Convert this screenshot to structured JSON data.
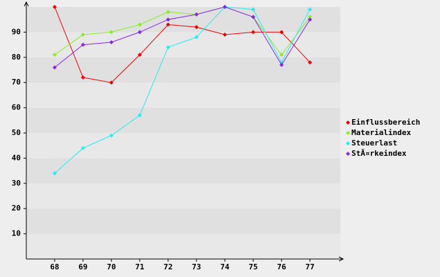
{
  "chart_data": {
    "type": "line",
    "categories": [
      "68",
      "69",
      "70",
      "71",
      "72",
      "73",
      "74",
      "75",
      "76",
      "77"
    ],
    "series": [
      {
        "name": "Einflussbereich",
        "color": "#ee0000",
        "values": [
          100,
          72,
          70,
          81,
          93,
          92,
          89,
          90,
          90,
          78
        ]
      },
      {
        "name": "Materialindex",
        "color": "#88ee22",
        "values": [
          81,
          89,
          90,
          93,
          98,
          97,
          100,
          96,
          81,
          96
        ]
      },
      {
        "name": "Steuerlast",
        "color": "#22eeee",
        "values": [
          34,
          44,
          49,
          57,
          84,
          88,
          100,
          99,
          78,
          99
        ]
      },
      {
        "name": "StÃ¤rkeindex",
        "color": "#8822ee",
        "values": [
          76,
          85,
          86,
          90,
          95,
          97,
          100,
          96,
          77,
          95
        ]
      }
    ],
    "ylim": [
      0,
      100
    ],
    "yticks": [
      10,
      20,
      30,
      40,
      50,
      60,
      70,
      80,
      90
    ],
    "grid": true,
    "legend": "right"
  }
}
